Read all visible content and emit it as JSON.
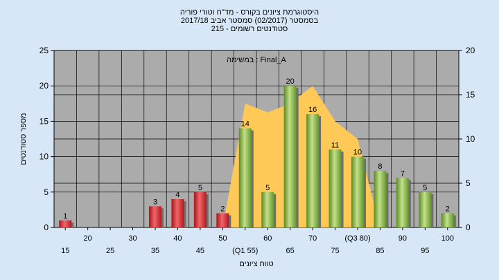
{
  "chart_data": {
    "type": "bar",
    "title_lines": [
      "היסטוגרמת ציונים בקורס - מד\"ח וטורי פוריה",
      "בסמסטר  (02/2017)  סמסטר אביב 2017/18",
      "סטודנטים רשומים - 215"
    ],
    "annotation": "במשימה : Final_A",
    "ylabel": "מספר סטודנטים",
    "xlabel": "טווח ציונים",
    "ylim": [
      0,
      25
    ],
    "yticks": [
      0,
      5,
      10,
      15,
      20,
      25
    ],
    "y2lim": [
      0,
      20
    ],
    "y2ticks": [
      0,
      5,
      10,
      15,
      20
    ],
    "grid": true,
    "x_tick_labels": [
      "15",
      "20",
      "25",
      "30",
      "35",
      "40",
      "45",
      "50",
      "(Q1 55)",
      "60",
      "65",
      "70",
      "75",
      "(Q3 80)",
      "85",
      "90",
      "95",
      "100"
    ],
    "bars": [
      {
        "x": "15",
        "value": 1,
        "color": "red"
      },
      {
        "x": "20",
        "value": 0,
        "color": "red"
      },
      {
        "x": "25",
        "value": 0,
        "color": "red"
      },
      {
        "x": "30",
        "value": 0,
        "color": "red"
      },
      {
        "x": "35",
        "value": 3,
        "color": "red"
      },
      {
        "x": "40",
        "value": 4,
        "color": "red"
      },
      {
        "x": "45",
        "value": 5,
        "color": "red"
      },
      {
        "x": "50",
        "value": 2,
        "color": "red"
      },
      {
        "x": "55",
        "value": 14,
        "color": "green"
      },
      {
        "x": "60",
        "value": 5,
        "color": "green"
      },
      {
        "x": "65",
        "value": 20,
        "color": "green"
      },
      {
        "x": "70",
        "value": 16,
        "color": "green"
      },
      {
        "x": "75",
        "value": 11,
        "color": "green"
      },
      {
        "x": "80",
        "value": 10,
        "color": "green"
      },
      {
        "x": "85",
        "value": 8,
        "color": "green"
      },
      {
        "x": "90",
        "value": 7,
        "color": "green"
      },
      {
        "x": "95",
        "value": 5,
        "color": "green"
      },
      {
        "x": "100",
        "value": 2,
        "color": "green"
      }
    ],
    "area": {
      "color": "#ffc957",
      "points": [
        {
          "x": "50",
          "value": 0
        },
        {
          "x": "55",
          "value": 14
        },
        {
          "x": "60",
          "value": 13
        },
        {
          "x": "65",
          "value": 14
        },
        {
          "x": "70",
          "value": 16
        },
        {
          "x": "75",
          "value": 12
        },
        {
          "x": "80",
          "value": 10
        },
        {
          "x": "85",
          "value": 0
        }
      ]
    },
    "colors": {
      "background": "#d8e7f7",
      "plot_area": "#ababab",
      "red": "#d9252b",
      "green": "#86b440",
      "area": "#ffc957"
    }
  }
}
